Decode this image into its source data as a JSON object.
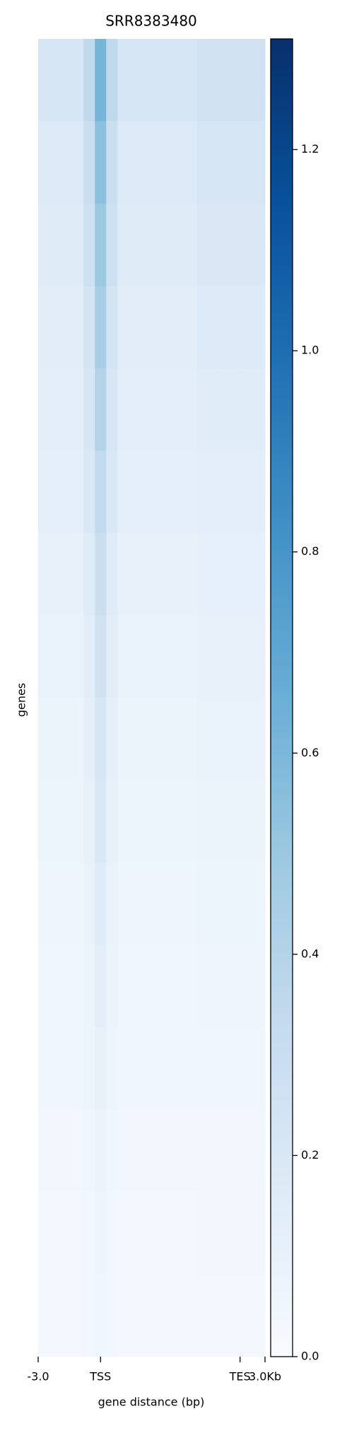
{
  "chart_data": {
    "type": "heatmap",
    "title": "SRR8383480",
    "xlabel": "gene distance (bp)",
    "ylabel": "genes",
    "xlim": [
      0,
      20
    ],
    "xticks": [
      {
        "value": 0,
        "label": "-3.0"
      },
      {
        "value": 5.5,
        "label": "TSS"
      },
      {
        "value": 17.8,
        "label": "TES"
      },
      {
        "value": 20,
        "label": "3.0Kb"
      }
    ],
    "colormap": [
      "#f7fbff",
      "#deebf7",
      "#c6dbef",
      "#9ecae1",
      "#6baed6",
      "#4292c6",
      "#2171b5",
      "#08519c",
      "#08306b"
    ],
    "colorbar": {
      "lim": [
        0,
        1.31
      ],
      "ticks": [
        {
          "value": 0,
          "label": "0.0"
        },
        0.2,
        0.4,
        0.6,
        0.8,
        {
          "value": 1,
          "label": "1.0"
        },
        1.2
      ]
    },
    "z": [
      [
        0.22,
        0.22,
        0.22,
        0.22,
        0.35,
        0.62,
        0.35,
        0.22,
        0.22,
        0.22,
        0.22,
        0.22,
        0.22,
        0.22,
        0.26,
        0.26,
        0.26,
        0.26,
        0.26,
        0.26
      ],
      [
        0.18,
        0.18,
        0.18,
        0.18,
        0.3,
        0.55,
        0.3,
        0.18,
        0.18,
        0.18,
        0.18,
        0.18,
        0.18,
        0.18,
        0.22,
        0.22,
        0.22,
        0.22,
        0.22,
        0.22
      ],
      [
        0.16,
        0.16,
        0.16,
        0.16,
        0.27,
        0.5,
        0.27,
        0.16,
        0.16,
        0.16,
        0.16,
        0.16,
        0.16,
        0.16,
        0.19,
        0.19,
        0.19,
        0.19,
        0.19,
        0.19
      ],
      [
        0.14,
        0.14,
        0.14,
        0.14,
        0.24,
        0.45,
        0.24,
        0.14,
        0.14,
        0.14,
        0.14,
        0.14,
        0.14,
        0.14,
        0.17,
        0.17,
        0.17,
        0.17,
        0.17,
        0.17
      ],
      [
        0.13,
        0.13,
        0.13,
        0.13,
        0.21,
        0.4,
        0.21,
        0.13,
        0.13,
        0.13,
        0.13,
        0.13,
        0.13,
        0.13,
        0.15,
        0.15,
        0.15,
        0.15,
        0.15,
        0.15
      ],
      [
        0.12,
        0.12,
        0.12,
        0.12,
        0.19,
        0.34,
        0.19,
        0.12,
        0.12,
        0.12,
        0.12,
        0.12,
        0.12,
        0.12,
        0.13,
        0.13,
        0.13,
        0.13,
        0.13,
        0.13
      ],
      [
        0.1,
        0.1,
        0.1,
        0.1,
        0.16,
        0.3,
        0.16,
        0.1,
        0.1,
        0.1,
        0.1,
        0.1,
        0.1,
        0.1,
        0.11,
        0.11,
        0.11,
        0.11,
        0.11,
        0.11
      ],
      [
        0.09,
        0.09,
        0.09,
        0.09,
        0.14,
        0.26,
        0.14,
        0.09,
        0.09,
        0.09,
        0.09,
        0.09,
        0.09,
        0.09,
        0.1,
        0.1,
        0.1,
        0.1,
        0.1,
        0.1
      ],
      [
        0.08,
        0.08,
        0.08,
        0.08,
        0.12,
        0.22,
        0.12,
        0.08,
        0.08,
        0.08,
        0.08,
        0.08,
        0.08,
        0.08,
        0.09,
        0.09,
        0.09,
        0.09,
        0.09,
        0.09
      ],
      [
        0.07,
        0.07,
        0.07,
        0.07,
        0.1,
        0.19,
        0.1,
        0.07,
        0.07,
        0.07,
        0.07,
        0.07,
        0.07,
        0.07,
        0.08,
        0.08,
        0.08,
        0.08,
        0.08,
        0.08
      ],
      [
        0.06,
        0.06,
        0.06,
        0.06,
        0.09,
        0.16,
        0.09,
        0.06,
        0.06,
        0.06,
        0.06,
        0.06,
        0.06,
        0.06,
        0.07,
        0.07,
        0.07,
        0.07,
        0.07,
        0.07
      ],
      [
        0.05,
        0.05,
        0.05,
        0.05,
        0.08,
        0.13,
        0.08,
        0.05,
        0.05,
        0.05,
        0.05,
        0.05,
        0.05,
        0.05,
        0.06,
        0.06,
        0.06,
        0.06,
        0.06,
        0.06
      ],
      [
        0.05,
        0.05,
        0.05,
        0.05,
        0.07,
        0.1,
        0.07,
        0.05,
        0.05,
        0.05,
        0.05,
        0.05,
        0.05,
        0.05,
        0.05,
        0.05,
        0.05,
        0.05,
        0.05,
        0.05
      ],
      [
        0.04,
        0.04,
        0.04,
        0.04,
        0.05,
        0.08,
        0.05,
        0.04,
        0.04,
        0.04,
        0.04,
        0.04,
        0.04,
        0.04,
        0.04,
        0.04,
        0.04,
        0.04,
        0.04,
        0.04
      ],
      [
        0.03,
        0.03,
        0.03,
        0.03,
        0.04,
        0.06,
        0.04,
        0.03,
        0.03,
        0.03,
        0.03,
        0.03,
        0.03,
        0.03,
        0.04,
        0.04,
        0.04,
        0.04,
        0.04,
        0.04
      ],
      [
        0.03,
        0.03,
        0.03,
        0.03,
        0.04,
        0.05,
        0.04,
        0.03,
        0.03,
        0.03,
        0.03,
        0.03,
        0.03,
        0.03,
        0.03,
        0.03,
        0.03,
        0.03,
        0.03,
        0.03
      ]
    ]
  }
}
